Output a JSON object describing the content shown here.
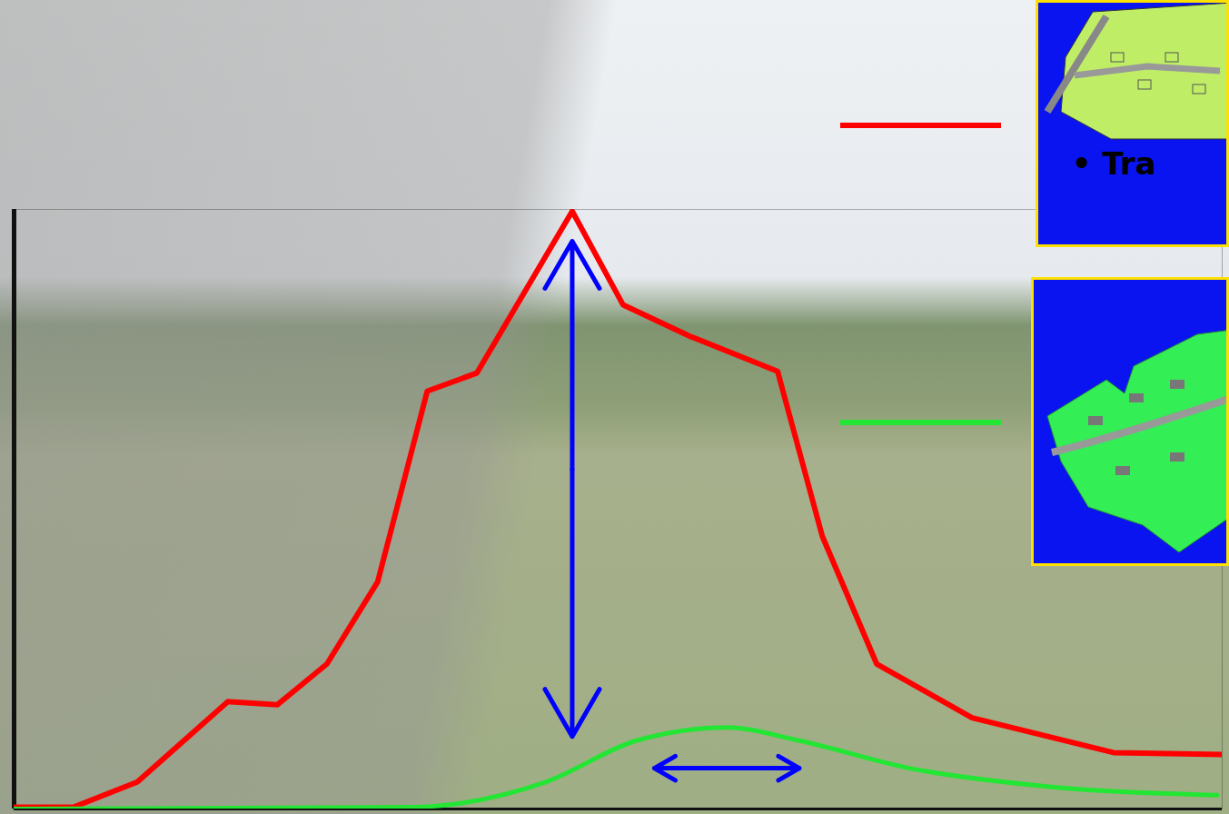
{
  "chart_data": {
    "type": "line",
    "tick_labels": false,
    "grid": false,
    "xlim": [
      0,
      100
    ],
    "ylim": [
      0,
      100
    ],
    "annotations": [
      "• Tra"
    ],
    "series": [
      {
        "color": "#ff0000",
        "line_style": "solid",
        "marker": "none",
        "x": [
          0,
          4.9,
          10.2,
          17.7,
          21.8,
          25.9,
          30.1,
          34.2,
          38.3,
          46.2,
          50.4,
          56.0,
          63.2,
          66.9,
          71.4,
          79.3,
          91.0,
          100
        ],
        "values": [
          0.3,
          0.3,
          4.5,
          17.9,
          17.4,
          24.2,
          37.9,
          69.7,
          72.7,
          99.7,
          84.1,
          78.8,
          73.0,
          45.5,
          24.2,
          15.2,
          9.4,
          9.1
        ]
      },
      {
        "color": "#22e633",
        "line_style": "solid",
        "marker": "none",
        "x": [
          0,
          32.7,
          44.0,
          51.5,
          59.0,
          65.0,
          74.1,
          85.3,
          99.6
        ],
        "values": [
          0,
          0.3,
          4.5,
          11.4,
          13.6,
          11.4,
          6.8,
          3.8,
          2.3
        ]
      }
    ]
  }
}
